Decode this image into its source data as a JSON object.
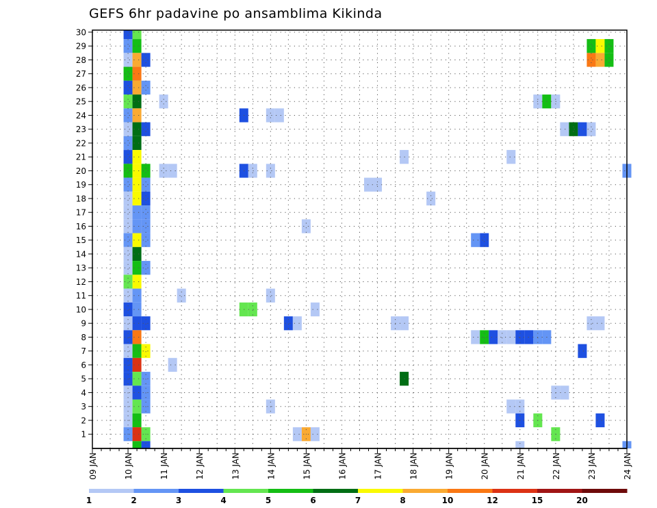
{
  "chart_data": {
    "type": "heatmap",
    "title": "GEFS 6hr padavine po ansamblima Kikinda",
    "y_categories": [
      "1",
      "2",
      "3",
      "4",
      "5",
      "6",
      "7",
      "8",
      "9",
      "10",
      "11",
      "12",
      "13",
      "14",
      "15",
      "16",
      "17",
      "18",
      "19",
      "20",
      "21",
      "22",
      "23",
      "24",
      "25",
      "26",
      "27",
      "28",
      "29",
      "30"
    ],
    "x_tick_labels": [
      "09 JAN",
      "10 JAN",
      "11 JAN",
      "12 JAN",
      "13 JAN",
      "14 JAN",
      "15 JAN",
      "16 JAN",
      "17 JAN",
      "18 JAN",
      "19 JAN",
      "20 JAN",
      "21 JAN",
      "22 JAN",
      "23 JAN",
      "24 JAN"
    ],
    "x_range_days": [
      0,
      15
    ],
    "xlabel": "",
    "ylabel": "",
    "legend": {
      "position": "bottom",
      "colors": [
        "#b4c8f5",
        "#6495f5",
        "#1e50e1",
        "#64e650",
        "#14be14",
        "#006e14",
        "#fafa00",
        "#faaa32",
        "#fa7814",
        "#dc3214",
        "#a01414",
        "#6e0a0a"
      ],
      "labels": [
        "1",
        "2",
        "3",
        "4",
        "5",
        "6",
        "7",
        "8",
        "10",
        "12",
        "15",
        "20"
      ]
    },
    "cells": [
      [
        1.0,
        30,
        2
      ],
      [
        1.0,
        29,
        1
      ],
      [
        1.0,
        28,
        0
      ],
      [
        1.0,
        27,
        4
      ],
      [
        1.0,
        26,
        2
      ],
      [
        1.0,
        25,
        3
      ],
      [
        1.0,
        24,
        1
      ],
      [
        1.0,
        23,
        0
      ],
      [
        1.0,
        22,
        1
      ],
      [
        1.0,
        21,
        2
      ],
      [
        1.0,
        20,
        4
      ],
      [
        1.0,
        19,
        1
      ],
      [
        1.0,
        18,
        0
      ],
      [
        1.0,
        17,
        0
      ],
      [
        1.0,
        16,
        0
      ],
      [
        1.0,
        15,
        1
      ],
      [
        1.0,
        14,
        0
      ],
      [
        1.0,
        13,
        0
      ],
      [
        1.0,
        12,
        3
      ],
      [
        1.0,
        11,
        0
      ],
      [
        1.0,
        10,
        2
      ],
      [
        1.0,
        9,
        0
      ],
      [
        1.0,
        8,
        2
      ],
      [
        1.0,
        7,
        0
      ],
      [
        1.0,
        6,
        2
      ],
      [
        1.0,
        5,
        2
      ],
      [
        1.0,
        4,
        0
      ],
      [
        1.0,
        3,
        0
      ],
      [
        1.0,
        2,
        0
      ],
      [
        1.0,
        1,
        1
      ],
      [
        1.25,
        30,
        3
      ],
      [
        1.25,
        29,
        4
      ],
      [
        1.25,
        28,
        7
      ],
      [
        1.25,
        27,
        8
      ],
      [
        1.25,
        26,
        7
      ],
      [
        1.25,
        25,
        5
      ],
      [
        1.25,
        24,
        7
      ],
      [
        1.25,
        23,
        5
      ],
      [
        1.25,
        22,
        5
      ],
      [
        1.25,
        21,
        6
      ],
      [
        1.25,
        20,
        6
      ],
      [
        1.25,
        19,
        6
      ],
      [
        1.25,
        18,
        6
      ],
      [
        1.25,
        17,
        1
      ],
      [
        1.25,
        16,
        1
      ],
      [
        1.25,
        15,
        6
      ],
      [
        1.25,
        14,
        5
      ],
      [
        1.25,
        13,
        4
      ],
      [
        1.25,
        12,
        6
      ],
      [
        1.25,
        11,
        1
      ],
      [
        1.25,
        10,
        1
      ],
      [
        1.25,
        9,
        2
      ],
      [
        1.25,
        8,
        8
      ],
      [
        1.25,
        7,
        4
      ],
      [
        1.25,
        6,
        9
      ],
      [
        1.25,
        5,
        3
      ],
      [
        1.25,
        4,
        2
      ],
      [
        1.25,
        3,
        3
      ],
      [
        1.25,
        2,
        4
      ],
      [
        1.25,
        1,
        9
      ],
      [
        1.25,
        0,
        4
      ],
      [
        1.5,
        28,
        2
      ],
      [
        1.5,
        26,
        1
      ],
      [
        1.5,
        23,
        2
      ],
      [
        1.5,
        20,
        4
      ],
      [
        1.5,
        19,
        1
      ],
      [
        1.5,
        18,
        2
      ],
      [
        1.5,
        17,
        1
      ],
      [
        1.5,
        16,
        1
      ],
      [
        1.5,
        15,
        1
      ],
      [
        1.5,
        13,
        1
      ],
      [
        1.5,
        9,
        2
      ],
      [
        1.5,
        7,
        6
      ],
      [
        1.5,
        5,
        1
      ],
      [
        1.5,
        4,
        1
      ],
      [
        1.5,
        3,
        1
      ],
      [
        1.5,
        1,
        3
      ],
      [
        1.5,
        0,
        2
      ],
      [
        2.0,
        25,
        0
      ],
      [
        2.0,
        20,
        0
      ],
      [
        2.25,
        20,
        0
      ],
      [
        2.5,
        11,
        0
      ],
      [
        2.25,
        6,
        0
      ],
      [
        4.25,
        24,
        2
      ],
      [
        4.25,
        20,
        2
      ],
      [
        4.5,
        20,
        0
      ],
      [
        4.25,
        10,
        3
      ],
      [
        4.5,
        10,
        3
      ],
      [
        5.0,
        24,
        0
      ],
      [
        5.25,
        24,
        0
      ],
      [
        5.0,
        20,
        0
      ],
      [
        5.0,
        11,
        0
      ],
      [
        5.0,
        3,
        0
      ],
      [
        5.5,
        9,
        2
      ],
      [
        5.75,
        9,
        0
      ],
      [
        5.75,
        1,
        0
      ],
      [
        6.0,
        1,
        7
      ],
      [
        6.25,
        1,
        0
      ],
      [
        6.0,
        16,
        0
      ],
      [
        6.25,
        10,
        0
      ],
      [
        7.75,
        19,
        0
      ],
      [
        8.0,
        19,
        0
      ],
      [
        8.5,
        9,
        0
      ],
      [
        8.75,
        9,
        0
      ],
      [
        8.75,
        21,
        0
      ],
      [
        8.75,
        5,
        5
      ],
      [
        9.5,
        18,
        0
      ],
      [
        10.75,
        15,
        1
      ],
      [
        11.0,
        15,
        2
      ],
      [
        10.75,
        8,
        0
      ],
      [
        11.0,
        8,
        4
      ],
      [
        11.25,
        8,
        2
      ],
      [
        11.5,
        8,
        0
      ],
      [
        11.75,
        8,
        0
      ],
      [
        11.75,
        21,
        0
      ],
      [
        11.75,
        3,
        0
      ],
      [
        12.0,
        3,
        0
      ],
      [
        12.0,
        8,
        2
      ],
      [
        12.25,
        8,
        2
      ],
      [
        12.5,
        8,
        1
      ],
      [
        12.75,
        8,
        1
      ],
      [
        12.0,
        2,
        2
      ],
      [
        12.0,
        0,
        0
      ],
      [
        12.5,
        2,
        3
      ],
      [
        12.5,
        25,
        0
      ],
      [
        12.75,
        25,
        4
      ],
      [
        13.0,
        25,
        0
      ],
      [
        13.0,
        4,
        0
      ],
      [
        13.25,
        4,
        0
      ],
      [
        13.0,
        1,
        3
      ],
      [
        13.25,
        23,
        0
      ],
      [
        13.5,
        23,
        5
      ],
      [
        13.75,
        23,
        2
      ],
      [
        14.0,
        23,
        0
      ],
      [
        13.75,
        7,
        2
      ],
      [
        14.0,
        9,
        0
      ],
      [
        14.25,
        9,
        0
      ],
      [
        14.25,
        2,
        2
      ],
      [
        14.0,
        28,
        8
      ],
      [
        14.25,
        28,
        7
      ],
      [
        14.5,
        28,
        4
      ],
      [
        14.0,
        29,
        4
      ],
      [
        14.25,
        29,
        6
      ],
      [
        14.5,
        29,
        4
      ],
      [
        15.0,
        20,
        1
      ],
      [
        15.0,
        0,
        1
      ]
    ]
  }
}
